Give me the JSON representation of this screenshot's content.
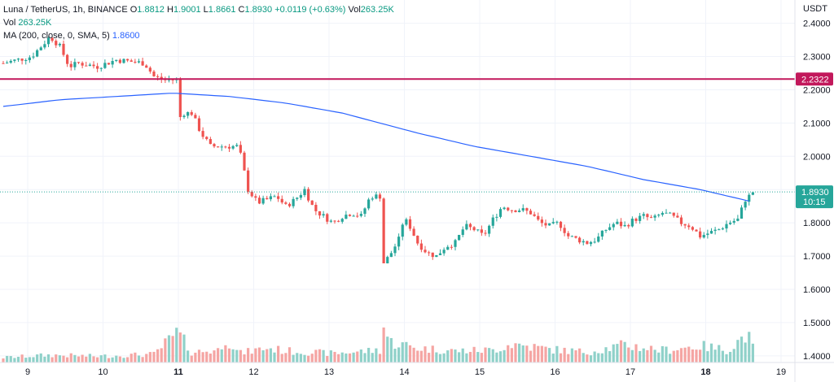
{
  "legend": {
    "symbol": "Luna / TetherUS, 1h, BINANCE",
    "o_label": "O",
    "o_value": "1.8812",
    "h_label": "H",
    "h_value": "1.9001",
    "l_label": "L",
    "l_value": "1.8661",
    "c_label": "C",
    "c_value": "1.8930",
    "change": "+0.0119 (+0.63%)",
    "vol_label": "Vol",
    "vol_value": "263.25K",
    "vol2_label": "Vol",
    "vol2_value": "263.25K",
    "ma_label": "MA (200, close, 0, SMA, 5)",
    "ma_value": "1.8600"
  },
  "colors": {
    "up": "#26a69a",
    "down": "#ef5350",
    "up_volume": "#8fd1c9",
    "down_volume": "#f5a5a3",
    "ma": "#2962ff",
    "resistance": "#c2185b",
    "grid": "#f0f3fa"
  },
  "chart_data": {
    "type": "candlestick",
    "currency": "USDT",
    "ylim": [
      1.38,
      2.47
    ],
    "y_ticks": [
      "2.4000",
      "2.3000",
      "2.2000",
      "2.1000",
      "2.0000",
      "1.9000",
      "1.8000",
      "1.7000",
      "1.6000",
      "1.5000",
      "1.4000"
    ],
    "x_ticks": [
      "9",
      "10",
      "11",
      "12",
      "13",
      "14",
      "15",
      "16",
      "17",
      "18",
      "19"
    ],
    "resistance_level": 2.2322,
    "resistance_label": "2.2322",
    "last_price": 1.893,
    "last_price_label": "1.8930",
    "countdown_label": "10:15",
    "price_path": [
      [
        0,
        2.28
      ],
      [
        3,
        2.3
      ],
      [
        5,
        2.36
      ],
      [
        6,
        2.33
      ],
      [
        7,
        2.27
      ],
      [
        8,
        2.28
      ],
      [
        10,
        2.27
      ],
      [
        12,
        2.29
      ],
      [
        15,
        2.28
      ],
      [
        16,
        2.24
      ],
      [
        17,
        2.23
      ],
      [
        18.4,
        2.23
      ],
      [
        18.5,
        2.1
      ],
      [
        19,
        2.13
      ],
      [
        20,
        2.13
      ],
      [
        21,
        2.07
      ],
      [
        22,
        2.03
      ],
      [
        24,
        2.03
      ],
      [
        25,
        2.03
      ],
      [
        26,
        1.9
      ],
      [
        27,
        1.86
      ],
      [
        29,
        1.88
      ],
      [
        30,
        1.85
      ],
      [
        31,
        1.87
      ],
      [
        32,
        1.9
      ],
      [
        33,
        1.84
      ],
      [
        35,
        1.8
      ],
      [
        36,
        1.82
      ],
      [
        37,
        1.83
      ],
      [
        38,
        1.82
      ],
      [
        39,
        1.88
      ],
      [
        40,
        1.88
      ],
      [
        40.1,
        1.67
      ],
      [
        41,
        1.7
      ],
      [
        42,
        1.75
      ],
      [
        42.5,
        1.81
      ],
      [
        43,
        1.8
      ],
      [
        44,
        1.74
      ],
      [
        45,
        1.71
      ],
      [
        46,
        1.7
      ],
      [
        47,
        1.73
      ],
      [
        48,
        1.74
      ],
      [
        49,
        1.79
      ],
      [
        50,
        1.78
      ],
      [
        51,
        1.76
      ],
      [
        52,
        1.81
      ],
      [
        53,
        1.85
      ],
      [
        54,
        1.84
      ],
      [
        55,
        1.84
      ],
      [
        56,
        1.83
      ],
      [
        57,
        1.8
      ],
      [
        58,
        1.79
      ],
      [
        59,
        1.8
      ],
      [
        60,
        1.76
      ],
      [
        61,
        1.75
      ],
      [
        62,
        1.74
      ],
      [
        63,
        1.75
      ],
      [
        64,
        1.78
      ],
      [
        65,
        1.8
      ],
      [
        66,
        1.79
      ],
      [
        67,
        1.81
      ],
      [
        68,
        1.82
      ],
      [
        69,
        1.81
      ],
      [
        70,
        1.83
      ],
      [
        71,
        1.82
      ],
      [
        72,
        1.8
      ],
      [
        73,
        1.79
      ],
      [
        74,
        1.76
      ],
      [
        75,
        1.77
      ],
      [
        76,
        1.78
      ],
      [
        77,
        1.8
      ],
      [
        78,
        1.81
      ],
      [
        78.8,
        1.87
      ],
      [
        79.2,
        1.88
      ],
      [
        79.6,
        1.893
      ]
    ],
    "ma_path": [
      [
        0,
        2.15
      ],
      [
        6,
        2.17
      ],
      [
        12,
        2.18
      ],
      [
        18,
        2.19
      ],
      [
        24,
        2.18
      ],
      [
        30,
        2.16
      ],
      [
        36,
        2.13
      ],
      [
        40,
        2.1
      ],
      [
        44,
        2.07
      ],
      [
        50,
        2.03
      ],
      [
        56,
        2.0
      ],
      [
        62,
        1.97
      ],
      [
        68,
        1.93
      ],
      [
        74,
        1.9
      ],
      [
        80,
        1.86
      ]
    ],
    "volume_path": [
      [
        0,
        0.12
      ],
      [
        5,
        0.18
      ],
      [
        10,
        0.15
      ],
      [
        16,
        0.2
      ],
      [
        18.5,
        0.72
      ],
      [
        20,
        0.25
      ],
      [
        23,
        0.3
      ],
      [
        23.5,
        0.65
      ],
      [
        25,
        0.22
      ],
      [
        28,
        0.35
      ],
      [
        30,
        0.28
      ],
      [
        35,
        0.22
      ],
      [
        40,
        0.3
      ],
      [
        40.2,
        1.0
      ],
      [
        41,
        0.5
      ],
      [
        44,
        0.35
      ],
      [
        48,
        0.28
      ],
      [
        52,
        0.3
      ],
      [
        54,
        0.45
      ],
      [
        58,
        0.32
      ],
      [
        62,
        0.25
      ],
      [
        66,
        0.42
      ],
      [
        70,
        0.3
      ],
      [
        74,
        0.4
      ],
      [
        77,
        0.3
      ],
      [
        78,
        0.5
      ],
      [
        79,
        0.7
      ],
      [
        79.6,
        0.35
      ]
    ]
  }
}
